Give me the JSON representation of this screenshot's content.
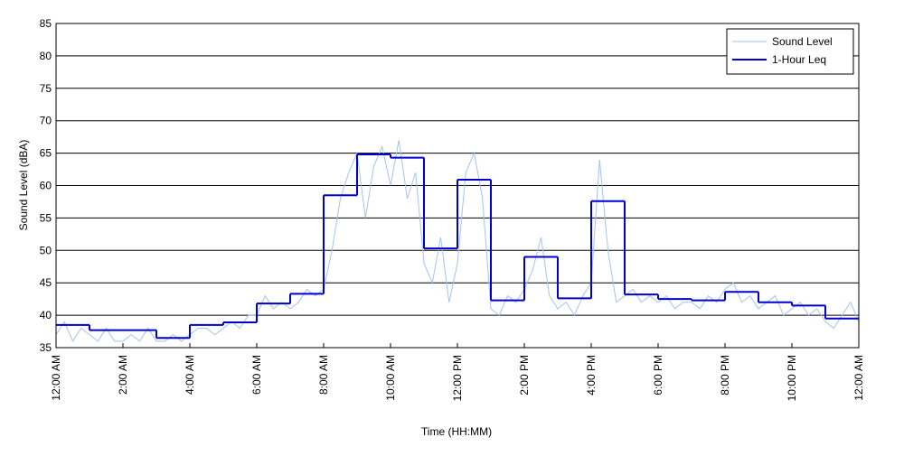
{
  "chart_data": {
    "type": "line",
    "xlabel": "Time (HH:MM)",
    "ylabel": "Sound Level (dBA)",
    "xlim": [
      0,
      24
    ],
    "ylim": [
      35,
      85
    ],
    "xticks": [
      {
        "value": 0,
        "label": "12:00 AM"
      },
      {
        "value": 2,
        "label": "2:00 AM"
      },
      {
        "value": 4,
        "label": "4:00 AM"
      },
      {
        "value": 6,
        "label": "6:00 AM"
      },
      {
        "value": 8,
        "label": "8:00 AM"
      },
      {
        "value": 10,
        "label": "10:00 AM"
      },
      {
        "value": 12,
        "label": "12:00 PM"
      },
      {
        "value": 14,
        "label": "2:00 PM"
      },
      {
        "value": 16,
        "label": "4:00 PM"
      },
      {
        "value": 18,
        "label": "6:00 PM"
      },
      {
        "value": 20,
        "label": "8:00 PM"
      },
      {
        "value": 22,
        "label": "10:00 PM"
      },
      {
        "value": 24,
        "label": "12:00 AM"
      }
    ],
    "yticks": [
      35,
      40,
      45,
      50,
      55,
      60,
      65,
      70,
      75,
      80,
      85
    ],
    "grid": true,
    "legend": "upper right",
    "series": [
      {
        "name": "Sound Level",
        "color": "#a4c2f4",
        "step": false,
        "x": [
          0,
          0.25,
          0.5,
          0.75,
          1,
          1.25,
          1.5,
          1.75,
          2,
          2.25,
          2.5,
          2.75,
          3,
          3.25,
          3.5,
          3.75,
          4,
          4.25,
          4.5,
          4.75,
          5,
          5.25,
          5.5,
          5.75,
          6,
          6.25,
          6.5,
          6.75,
          7,
          7.25,
          7.5,
          7.75,
          8,
          8.25,
          8.5,
          8.75,
          9,
          9.25,
          9.5,
          9.75,
          10,
          10.25,
          10.5,
          10.75,
          11,
          11.25,
          11.5,
          11.75,
          12,
          12.25,
          12.5,
          12.75,
          13,
          13.25,
          13.5,
          13.75,
          14,
          14.25,
          14.5,
          14.75,
          15,
          15.25,
          15.5,
          15.75,
          16,
          16.25,
          16.5,
          16.75,
          17,
          17.25,
          17.5,
          17.75,
          18,
          18.25,
          18.5,
          18.75,
          19,
          19.25,
          19.5,
          19.75,
          20,
          20.25,
          20.5,
          20.75,
          21,
          21.25,
          21.5,
          21.75,
          22,
          22.25,
          22.5,
          22.75,
          23,
          23.25,
          23.5,
          23.75,
          24
        ],
        "values": [
          37,
          39,
          36,
          38,
          37,
          36,
          38,
          36,
          36,
          37,
          36,
          38,
          36,
          36,
          37,
          36,
          37,
          38,
          38,
          37,
          38,
          39,
          38,
          40,
          40,
          43,
          41,
          42,
          41,
          42,
          44,
          43,
          44,
          50,
          58,
          62,
          65,
          55,
          63,
          66,
          60,
          67,
          58,
          62,
          48,
          45,
          52,
          42,
          48,
          62,
          65,
          58,
          41,
          40,
          43,
          42,
          44,
          47,
          52,
          43,
          41,
          42,
          40,
          43,
          45,
          64,
          50,
          42,
          43,
          44,
          42,
          43,
          42,
          43,
          41,
          42,
          42,
          41,
          43,
          42,
          44,
          45,
          42,
          43,
          41,
          42,
          43,
          40,
          41,
          42,
          40,
          41,
          39,
          38,
          40,
          42,
          39
        ]
      },
      {
        "name": "1-Hour Leq",
        "color": "#0000cc",
        "step": true,
        "x": [
          0,
          1,
          2,
          3,
          4,
          5,
          6,
          7,
          8,
          9,
          10,
          11,
          12,
          13,
          14,
          15,
          16,
          17,
          18,
          19,
          20,
          21,
          22,
          23
        ],
        "values": [
          38.5,
          37.7,
          37.7,
          36.5,
          38.5,
          38.9,
          41.8,
          43.3,
          58.5,
          64.8,
          64.3,
          50.3,
          60.9,
          42.3,
          49.0,
          42.6,
          57.6,
          43.2,
          42.5,
          42.3,
          43.6,
          42.0,
          41.5,
          39.5
        ]
      }
    ]
  }
}
